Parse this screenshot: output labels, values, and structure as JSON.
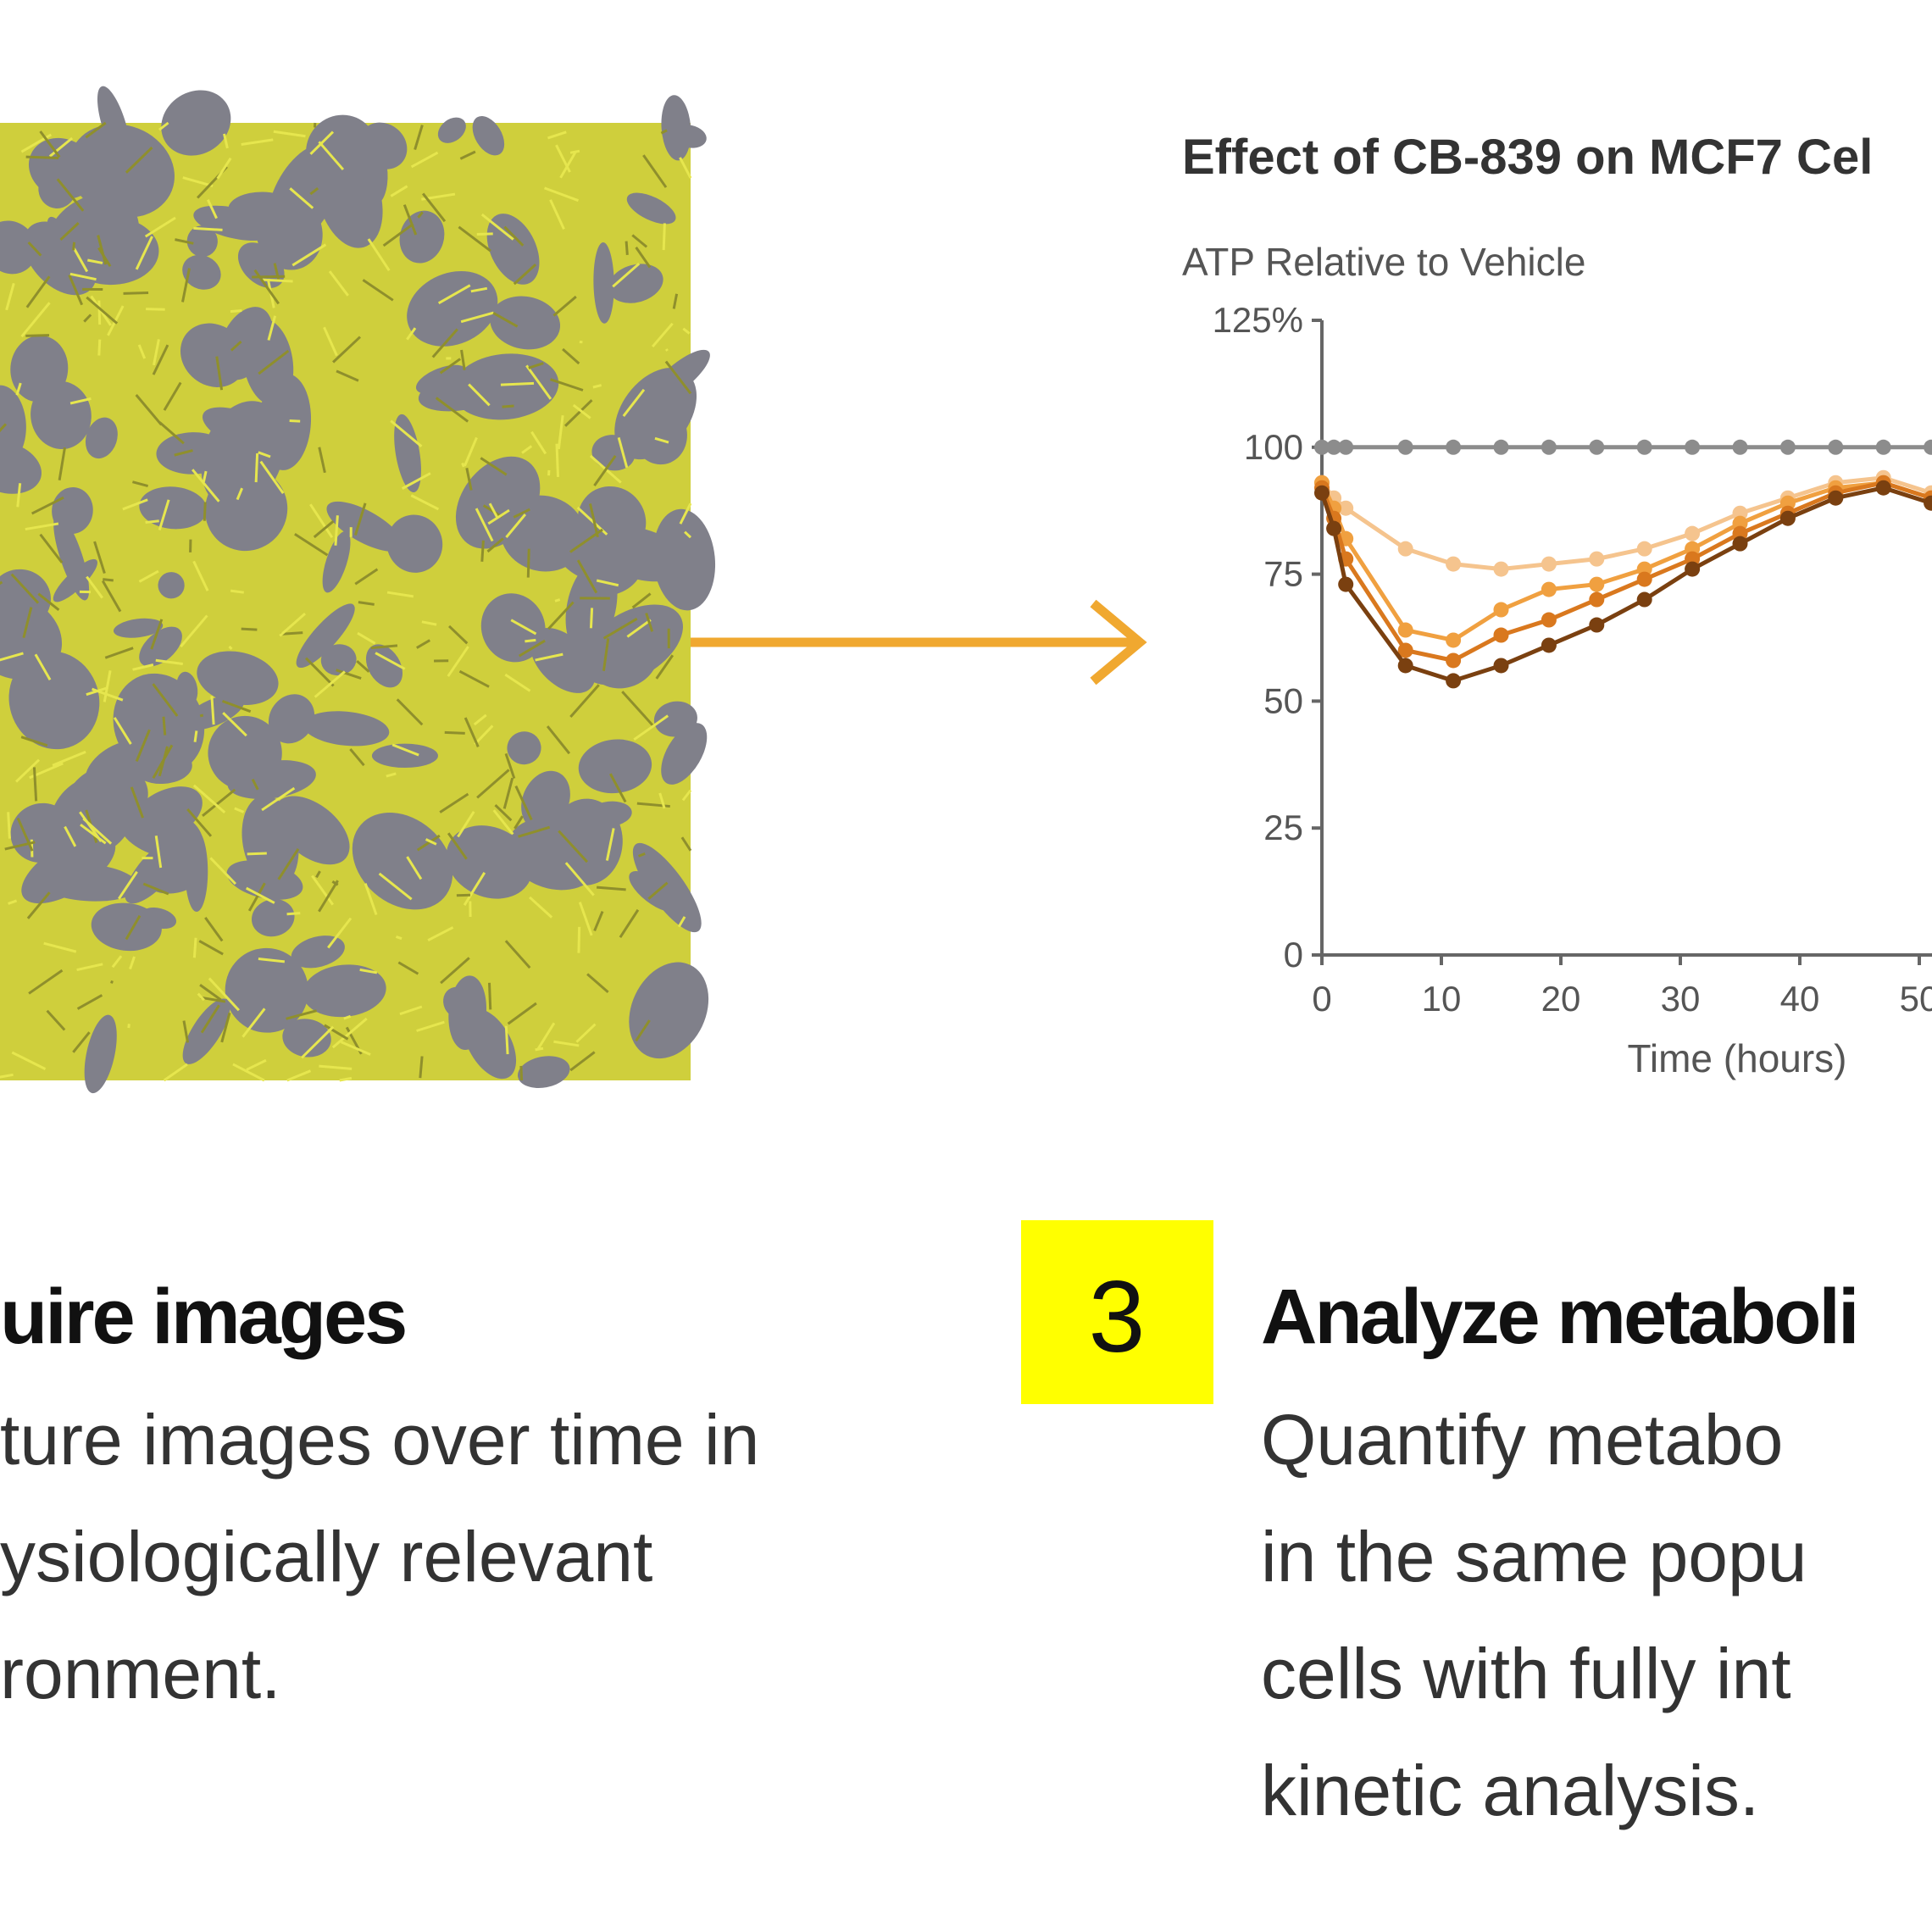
{
  "chart_data": {
    "type": "line",
    "title": "Effect of CB-839 on MCF7 Cel",
    "y_label": "ATP Relative to Vehicle",
    "x_label": "Time (hours)",
    "x": [
      0,
      1,
      2,
      7,
      11,
      15,
      19,
      23,
      27,
      31,
      35,
      39,
      43,
      47,
      51
    ],
    "series": [
      {
        "color": "#8c8c8c",
        "values": [
          100,
          100,
          100,
          100,
          100,
          100,
          100,
          100,
          100,
          100,
          100,
          100,
          100,
          100,
          100
        ]
      },
      {
        "color": "#f5c48e",
        "values": [
          93,
          90,
          88,
          80,
          77,
          76,
          77,
          78,
          80,
          83,
          87,
          90,
          93,
          94,
          91
        ]
      },
      {
        "color": "#f0a040",
        "values": [
          93,
          88,
          82,
          64,
          62,
          68,
          72,
          73,
          76,
          80,
          85,
          89,
          92,
          93,
          90
        ]
      },
      {
        "color": "#d9781e",
        "values": [
          92,
          86,
          78,
          60,
          58,
          63,
          66,
          70,
          74,
          78,
          83,
          87,
          91,
          93,
          90
        ]
      },
      {
        "color": "#7a4010",
        "values": [
          91,
          84,
          73,
          57,
          54,
          57,
          61,
          65,
          70,
          76,
          81,
          86,
          90,
          92,
          89
        ]
      }
    ],
    "xlim": [
      0,
      60
    ],
    "ylim": [
      0,
      125
    ],
    "xticks": [
      0,
      10,
      20,
      30,
      40,
      50
    ],
    "yticks": [
      0,
      25,
      50,
      75,
      100,
      {
        "value": 125,
        "label": "125%"
      }
    ],
    "grid": false
  },
  "steps": [
    {
      "heading": "uire images",
      "lines": [
        "ture images over time in",
        "ysiologically relevant",
        "ronment."
      ]
    },
    {
      "number": "3",
      "heading": "Analyze metaboli",
      "lines": [
        "Quantify metabo",
        "in the same popu",
        "cells with fully int",
        "kinetic analysis."
      ]
    }
  ]
}
